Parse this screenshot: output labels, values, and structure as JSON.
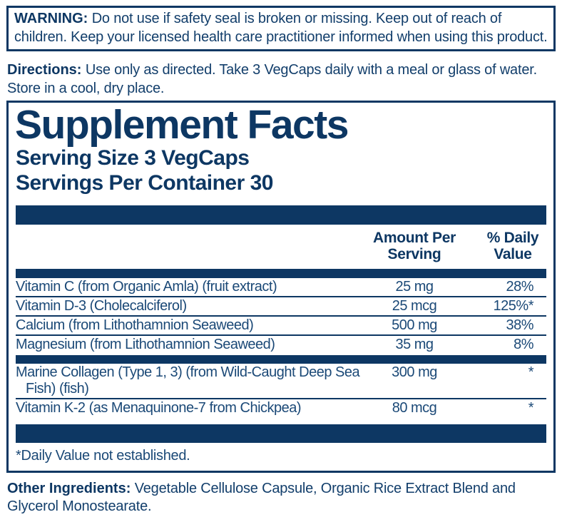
{
  "colors": {
    "navy": "#0d3763",
    "text": "#123e6b",
    "row_text": "#1b4977",
    "background": "#ffffff"
  },
  "warning": {
    "label": "WARNING:",
    "text": "Do not use if safety seal is broken or missing. Keep out of reach of children. Keep your licensed health care practitioner informed when using this product."
  },
  "directions": {
    "label": "Directions:",
    "text": "Use only as directed. Take 3 VegCaps daily with a meal or glass of water. Store in a cool, dry place."
  },
  "supplement_facts": {
    "title": "Supplement Facts",
    "serving_size": "Serving Size 3 VegCaps",
    "servings_per_container": "Servings Per Container 30",
    "columns": {
      "amount": [
        "Amount Per",
        "Serving"
      ],
      "dv": [
        "% Daily",
        "Value"
      ]
    },
    "rows": [
      {
        "name": "Vitamin C (from Organic Amla) (fruit extract)",
        "amount": "25 mg",
        "dv": "28%"
      },
      {
        "name": "Vitamin D-3 (Cholecalciferol)",
        "amount": "25 mcg",
        "dv": "125%*"
      },
      {
        "name": "Calcium (from Lithothamnion Seaweed)",
        "amount": "500 mg",
        "dv": "38%"
      },
      {
        "name": "Magnesium (from Lithothamnion Seaweed)",
        "amount": "35 mg",
        "dv": "8%"
      },
      {
        "name": "Marine Collagen (Type 1, 3) (from Wild-Caught Deep Sea",
        "name2": "Fish) (fish)",
        "amount": "300 mg",
        "dv": "*"
      },
      {
        "name": "Vitamin K-2 (as Menaquinone-7 from Chickpea)",
        "amount": "80 mcg",
        "dv": "*"
      }
    ],
    "footnote": "*Daily Value not established."
  },
  "other_ingredients": {
    "label": "Other Ingredients:",
    "text": "Vegetable Cellulose Capsule, Organic Rice Extract Blend and Glycerol Monostearate."
  }
}
